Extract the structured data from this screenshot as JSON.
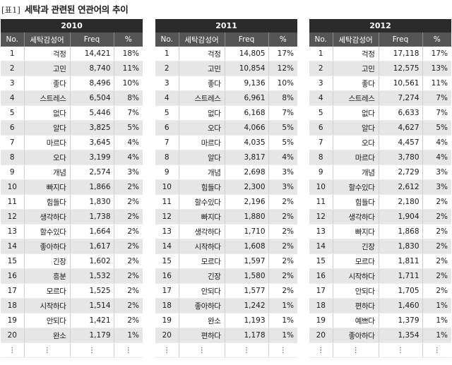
{
  "caption": {
    "tag": "[표1]",
    "text": "세탁과 관련된 연관어의 추이"
  },
  "columns": {
    "no": "No.",
    "word": "세탁감성어",
    "freq": "Freq",
    "pct": "%"
  },
  "ellipsis": "⋮",
  "tables": [
    {
      "year": "2010",
      "rows": [
        {
          "no": "1",
          "word": "걱정",
          "freq": "14,421",
          "pct": "18%"
        },
        {
          "no": "2",
          "word": "고민",
          "freq": "8,740",
          "pct": "11%"
        },
        {
          "no": "3",
          "word": "좋다",
          "freq": "8,496",
          "pct": "10%"
        },
        {
          "no": "4",
          "word": "스트레스",
          "freq": "6,504",
          "pct": "8%"
        },
        {
          "no": "5",
          "word": "없다",
          "freq": "5,446",
          "pct": "7%"
        },
        {
          "no": "6",
          "word": "알다",
          "freq": "3,825",
          "pct": "5%"
        },
        {
          "no": "7",
          "word": "마르다",
          "freq": "3,645",
          "pct": "4%"
        },
        {
          "no": "8",
          "word": "오다",
          "freq": "3,199",
          "pct": "4%"
        },
        {
          "no": "9",
          "word": "개념",
          "freq": "2,574",
          "pct": "3%"
        },
        {
          "no": "10",
          "word": "빠지다",
          "freq": "1,866",
          "pct": "2%"
        },
        {
          "no": "11",
          "word": "힘들다",
          "freq": "1,830",
          "pct": "2%"
        },
        {
          "no": "12",
          "word": "생각하다",
          "freq": "1,738",
          "pct": "2%"
        },
        {
          "no": "13",
          "word": "할수있다",
          "freq": "1,664",
          "pct": "2%"
        },
        {
          "no": "14",
          "word": "좋아하다",
          "freq": "1,617",
          "pct": "2%"
        },
        {
          "no": "15",
          "word": "긴장",
          "freq": "1,602",
          "pct": "2%"
        },
        {
          "no": "16",
          "word": "흥분",
          "freq": "1,532",
          "pct": "2%"
        },
        {
          "no": "17",
          "word": "모르다",
          "freq": "1,525",
          "pct": "2%"
        },
        {
          "no": "18",
          "word": "시작하다",
          "freq": "1,514",
          "pct": "2%"
        },
        {
          "no": "19",
          "word": "안되다",
          "freq": "1,421",
          "pct": "2%"
        },
        {
          "no": "20",
          "word": "완소",
          "freq": "1,179",
          "pct": "1%"
        }
      ]
    },
    {
      "year": "2011",
      "rows": [
        {
          "no": "1",
          "word": "걱정",
          "freq": "14,805",
          "pct": "17%"
        },
        {
          "no": "2",
          "word": "고민",
          "freq": "10,854",
          "pct": "12%"
        },
        {
          "no": "3",
          "word": "좋다",
          "freq": "9,136",
          "pct": "10%"
        },
        {
          "no": "4",
          "word": "스트레스",
          "freq": "6,961",
          "pct": "8%"
        },
        {
          "no": "5",
          "word": "없다",
          "freq": "6,168",
          "pct": "7%"
        },
        {
          "no": "6",
          "word": "오다",
          "freq": "4,066",
          "pct": "5%"
        },
        {
          "no": "7",
          "word": "마르다",
          "freq": "4,035",
          "pct": "5%"
        },
        {
          "no": "8",
          "word": "알다",
          "freq": "3,817",
          "pct": "4%"
        },
        {
          "no": "9",
          "word": "개념",
          "freq": "2,698",
          "pct": "3%"
        },
        {
          "no": "10",
          "word": "힘들다",
          "freq": "2,300",
          "pct": "3%"
        },
        {
          "no": "11",
          "word": "할수있다",
          "freq": "2,196",
          "pct": "2%"
        },
        {
          "no": "12",
          "word": "빠지다",
          "freq": "1,880",
          "pct": "2%"
        },
        {
          "no": "13",
          "word": "생각하다",
          "freq": "1,710",
          "pct": "2%"
        },
        {
          "no": "14",
          "word": "시작하다",
          "freq": "1,608",
          "pct": "2%"
        },
        {
          "no": "15",
          "word": "모르다",
          "freq": "1,597",
          "pct": "2%"
        },
        {
          "no": "16",
          "word": "긴장",
          "freq": "1,580",
          "pct": "2%"
        },
        {
          "no": "17",
          "word": "안되다",
          "freq": "1,577",
          "pct": "2%"
        },
        {
          "no": "18",
          "word": "좋아하다",
          "freq": "1,242",
          "pct": "1%"
        },
        {
          "no": "19",
          "word": "완소",
          "freq": "1,193",
          "pct": "1%"
        },
        {
          "no": "20",
          "word": "편하다",
          "freq": "1,178",
          "pct": "1%"
        }
      ]
    },
    {
      "year": "2012",
      "rows": [
        {
          "no": "1",
          "word": "걱정",
          "freq": "17,118",
          "pct": "17%"
        },
        {
          "no": "2",
          "word": "고민",
          "freq": "12,575",
          "pct": "13%"
        },
        {
          "no": "3",
          "word": "좋다",
          "freq": "10,561",
          "pct": "11%"
        },
        {
          "no": "4",
          "word": "스트레스",
          "freq": "7,274",
          "pct": "7%"
        },
        {
          "no": "5",
          "word": "없다",
          "freq": "6,633",
          "pct": "7%"
        },
        {
          "no": "6",
          "word": "알다",
          "freq": "4,627",
          "pct": "5%"
        },
        {
          "no": "7",
          "word": "오다",
          "freq": "4,457",
          "pct": "4%"
        },
        {
          "no": "8",
          "word": "마르다",
          "freq": "3,780",
          "pct": "4%"
        },
        {
          "no": "9",
          "word": "개념",
          "freq": "2,729",
          "pct": "3%"
        },
        {
          "no": "10",
          "word": "할수있다",
          "freq": "2,612",
          "pct": "3%"
        },
        {
          "no": "11",
          "word": "힘들다",
          "freq": "2,180",
          "pct": "2%"
        },
        {
          "no": "12",
          "word": "생각하다",
          "freq": "1,904",
          "pct": "2%"
        },
        {
          "no": "13",
          "word": "빠지다",
          "freq": "1,868",
          "pct": "2%"
        },
        {
          "no": "14",
          "word": "긴장",
          "freq": "1,830",
          "pct": "2%"
        },
        {
          "no": "15",
          "word": "모르다",
          "freq": "1,811",
          "pct": "2%"
        },
        {
          "no": "16",
          "word": "시작하다",
          "freq": "1,711",
          "pct": "2%"
        },
        {
          "no": "17",
          "word": "안되다",
          "freq": "1,705",
          "pct": "2%"
        },
        {
          "no": "18",
          "word": "편하다",
          "freq": "1,460",
          "pct": "1%"
        },
        {
          "no": "19",
          "word": "예쁘다",
          "freq": "1,379",
          "pct": "1%"
        },
        {
          "no": "20",
          "word": "좋아하다",
          "freq": "1,354",
          "pct": "1%"
        }
      ]
    }
  ]
}
